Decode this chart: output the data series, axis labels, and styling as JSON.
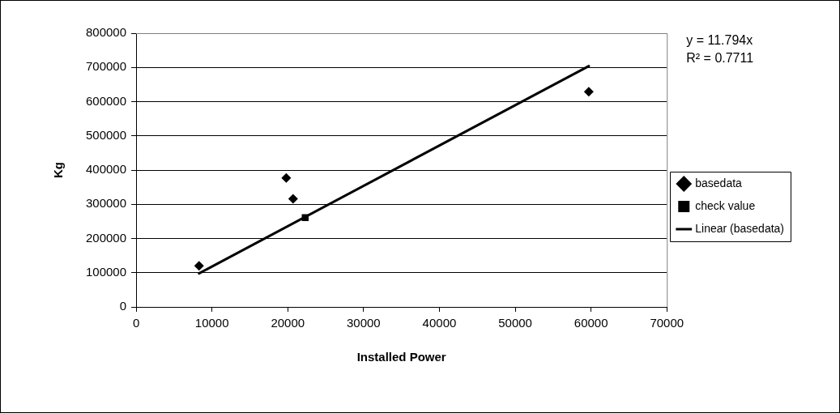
{
  "chart_data": {
    "type": "scatter",
    "xlabel": "Installed Power",
    "ylabel": "Kg",
    "xlim": [
      0,
      70000
    ],
    "xticks": [
      0,
      10000,
      20000,
      30000,
      40000,
      50000,
      60000,
      70000
    ],
    "ylim": [
      0,
      800000
    ],
    "yticks": [
      0,
      100000,
      200000,
      300000,
      400000,
      500000,
      600000,
      700000,
      800000
    ],
    "grid": "y",
    "legend": "right",
    "annotations": [
      "y = 11.794x",
      "R² = 0.7711"
    ],
    "series": [
      {
        "name": "basedata",
        "type": "scatter",
        "marker": "diamond",
        "color": "#000000",
        "x": [
          8300,
          19800,
          20700,
          59700
        ],
        "values": [
          120000,
          377000,
          316000,
          629000
        ]
      },
      {
        "name": "check value",
        "type": "scatter",
        "marker": "square",
        "color": "#000000",
        "x": [
          22300
        ],
        "values": [
          261000
        ]
      },
      {
        "name": "Linear (basedata)",
        "type": "line",
        "marker": "none",
        "color": "#000000",
        "x": [
          8300,
          59700
        ],
        "values": [
          98000,
          704000
        ]
      }
    ]
  }
}
